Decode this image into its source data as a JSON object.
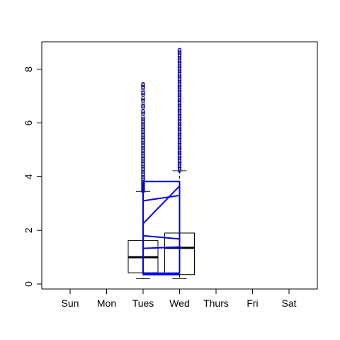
{
  "chart_data": {
    "type": "boxplot",
    "categories": [
      "Sun",
      "Mon",
      "Tues",
      "Wed",
      "Thurs",
      "Fri",
      "Sat"
    ],
    "ylim": [
      0,
      9
    ],
    "yticks": [
      0,
      2,
      4,
      6,
      8
    ],
    "ytick_labels": [
      "0",
      "2",
      "4",
      "6",
      "8"
    ],
    "title": "",
    "xlabel": "",
    "ylabel": "",
    "grid": false,
    "boxes": [
      {
        "category": "Tues",
        "whisker_low": 0.2,
        "q1": 0.42,
        "median": 1.0,
        "q3": 1.62,
        "whisker_high": 3.45,
        "outliers_range": [
          3.45,
          7.45
        ]
      },
      {
        "category": "Wed",
        "whisker_low": 0.2,
        "q1": 0.35,
        "median": 1.35,
        "q3": 1.9,
        "whisker_high": 4.22,
        "outliers_range": [
          4.22,
          8.72
        ]
      }
    ],
    "blue_overlay": {
      "x_categories": [
        "Tues",
        "Wed"
      ],
      "segments": [
        [
          0.38,
          0.38
        ],
        [
          1.33,
          1.38
        ],
        [
          1.8,
          1.68
        ],
        [
          2.25,
          3.65
        ],
        [
          3.1,
          3.3
        ],
        [
          3.82,
          3.82
        ]
      ]
    },
    "colors": {
      "box": "#000000",
      "median": "#000000",
      "overlay": "#0000ee",
      "outlier": "#00008b"
    }
  }
}
